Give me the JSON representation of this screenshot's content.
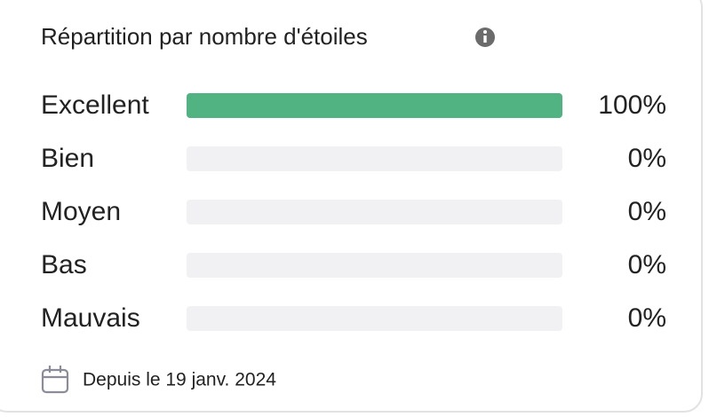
{
  "chart_data": {
    "type": "hbar",
    "title": "Répartition par nombre d'étoiles",
    "categories": [
      "Excellent",
      "Bien",
      "Moyen",
      "Bas",
      "Mauvais"
    ],
    "values": [
      100,
      0,
      0,
      0,
      0
    ],
    "value_labels": [
      "100%",
      "0%",
      "0%",
      "0%",
      "0%"
    ],
    "color": "#52b382",
    "xlim": [
      0,
      100
    ],
    "footnote": "Depuis le 19 janv. 2024"
  }
}
